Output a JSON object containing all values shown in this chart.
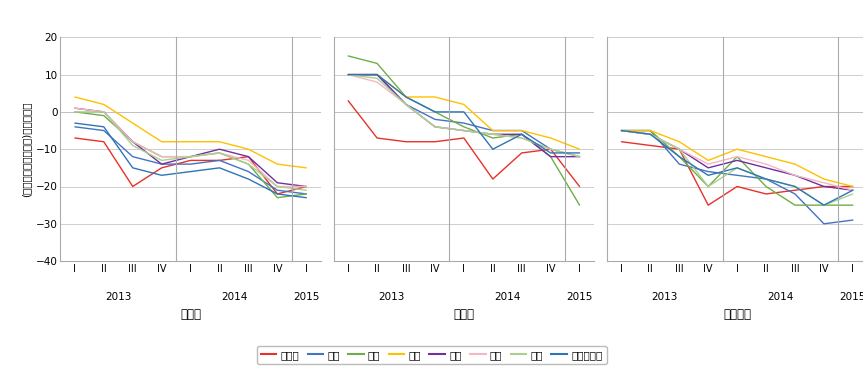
{
  "ylabel": "(「過剰」－「不足」)％ポイント",
  "ylim": [
    -40,
    20
  ],
  "yticks": [
    -40,
    -30,
    -20,
    -10,
    0,
    10,
    20
  ],
  "sections": [
    "全産業",
    "製造業",
    "非製造業"
  ],
  "series": [
    {
      "name": "北海道",
      "color": "#e8312a"
    },
    {
      "name": "東北",
      "color": "#4472c4"
    },
    {
      "name": "北陸",
      "color": "#70ad47"
    },
    {
      "name": "東海",
      "color": "#ffc000"
    },
    {
      "name": "近畿",
      "color": "#7030a0"
    },
    {
      "name": "中国",
      "color": "#f4b8c1"
    },
    {
      "name": "四国",
      "color": "#a9d18e"
    },
    {
      "name": "九州・沖縄",
      "color": "#2e75b6"
    }
  ],
  "data_zensangyo": {
    "北海道": [
      -7,
      -8,
      -20,
      -15,
      -13,
      -13,
      -12,
      -22,
      -20
    ],
    "東北": [
      -4,
      -5,
      -12,
      -14,
      -14,
      -13,
      -16,
      -21,
      -22
    ],
    "北陸": [
      0,
      -1,
      -8,
      -12,
      -12,
      -11,
      -14,
      -23,
      -22
    ],
    "東海": [
      4,
      2,
      -3,
      -8,
      -8,
      -8,
      -10,
      -14,
      -15
    ],
    "近畿": [
      1,
      0,
      -8,
      -14,
      -12,
      -10,
      -12,
      -19,
      -20
    ],
    "中国": [
      1,
      0,
      -8,
      -12,
      -12,
      -11,
      -13,
      -20,
      -20
    ],
    "四国": [
      0,
      0,
      -9,
      -13,
      -12,
      -11,
      -14,
      -20,
      -21
    ],
    "九州・沖縄": [
      -3,
      -4,
      -15,
      -17,
      -16,
      -15,
      -18,
      -22,
      -23
    ]
  },
  "data_seizogyo": {
    "北海道": [
      3,
      -7,
      -8,
      -8,
      -7,
      -18,
      -11,
      -10,
      -20
    ],
    "東北": [
      10,
      10,
      2,
      -2,
      -3,
      -5,
      -5,
      -10,
      -12
    ],
    "北陸": [
      15,
      13,
      4,
      0,
      -4,
      -7,
      -6,
      -12,
      -25
    ],
    "東海": [
      10,
      10,
      4,
      4,
      2,
      -5,
      -5,
      -7,
      -10
    ],
    "近畿": [
      10,
      10,
      2,
      -4,
      -5,
      -6,
      -6,
      -12,
      -12
    ],
    "中国": [
      10,
      8,
      2,
      -4,
      -5,
      -6,
      -7,
      -10,
      -12
    ],
    "四国": [
      10,
      9,
      2,
      -4,
      -5,
      -6,
      -7,
      -10,
      -12
    ],
    "九州・沖縄": [
      10,
      10,
      4,
      0,
      0,
      -10,
      -6,
      -11,
      -11
    ]
  },
  "data_hiseizogyo": {
    "北海道": [
      -8,
      -9,
      -10,
      -25,
      -20,
      -22,
      -21,
      -20,
      -20
    ],
    "東北": [
      -5,
      -5,
      -14,
      -16,
      -17,
      -18,
      -22,
      -30,
      -29
    ],
    "北陸": [
      -5,
      -5,
      -12,
      -20,
      -12,
      -20,
      -25,
      -25,
      -25
    ],
    "東海": [
      -5,
      -5,
      -8,
      -13,
      -10,
      -12,
      -14,
      -18,
      -20
    ],
    "近畿": [
      -5,
      -6,
      -10,
      -15,
      -13,
      -15,
      -17,
      -20,
      -21
    ],
    "中国": [
      -5,
      -6,
      -10,
      -14,
      -12,
      -14,
      -17,
      -19,
      -21
    ],
    "四国": [
      -5,
      -6,
      -10,
      -20,
      -15,
      -18,
      -20,
      -25,
      -22
    ],
    "九州・沖縄": [
      -5,
      -6,
      -12,
      -17,
      -15,
      -18,
      -20,
      -25,
      -21
    ]
  }
}
